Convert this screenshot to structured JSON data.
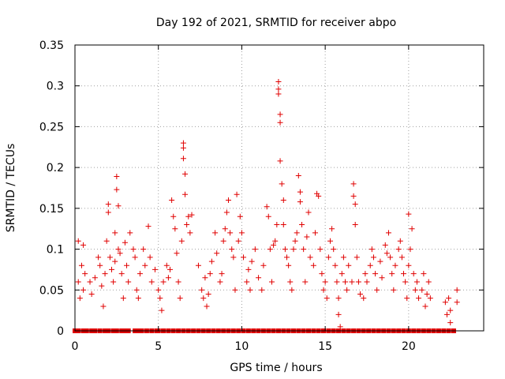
{
  "chart_data": {
    "type": "scatter",
    "title": "Day 192 of 2021, SRMTID for receiver abpo",
    "xlabel": "GPS time / hours",
    "ylabel": "SRMTID / TECUs",
    "xlim": [
      0,
      24.5
    ],
    "ylim": [
      0,
      0.35
    ],
    "grid": true,
    "marker": "+",
    "color": "#e00000",
    "x_ticks": [
      {
        "value": 0,
        "label": "0"
      },
      {
        "value": 5,
        "label": "5"
      },
      {
        "value": 10,
        "label": "10"
      },
      {
        "value": 15,
        "label": "15"
      },
      {
        "value": 20,
        "label": "20"
      }
    ],
    "y_ticks": [
      {
        "value": 0,
        "label": "0"
      },
      {
        "value": 0.05,
        "label": "0.05"
      },
      {
        "value": 0.1,
        "label": "0.1"
      },
      {
        "value": 0.15,
        "label": "0.15"
      },
      {
        "value": 0.2,
        "label": "0.2"
      },
      {
        "value": 0.25,
        "label": "0.25"
      },
      {
        "value": 0.3,
        "label": "0.3"
      },
      {
        "value": 0.35,
        "label": "0.35"
      }
    ],
    "series": [
      {
        "name": "SRMTID",
        "points": [
          [
            0.2,
            0.11
          ],
          [
            0.2,
            0.06
          ],
          [
            0.3,
            0.04
          ],
          [
            0.4,
            0.08
          ],
          [
            0.5,
            0.105
          ],
          [
            0.5,
            0.05
          ],
          [
            0.6,
            0.07
          ],
          [
            0.9,
            0.06
          ],
          [
            1.0,
            0.045
          ],
          [
            1.2,
            0.065
          ],
          [
            1.4,
            0.09
          ],
          [
            1.5,
            0.08
          ],
          [
            1.6,
            0.055
          ],
          [
            1.7,
            0.03
          ],
          [
            1.8,
            0.07
          ],
          [
            1.9,
            0.11
          ],
          [
            2.0,
            0.145
          ],
          [
            2.0,
            0.155
          ],
          [
            2.1,
            0.09
          ],
          [
            2.2,
            0.075
          ],
          [
            2.3,
            0.06
          ],
          [
            2.4,
            0.12
          ],
          [
            2.4,
            0.085
          ],
          [
            2.5,
            0.189
          ],
          [
            2.5,
            0.173
          ],
          [
            2.6,
            0.153
          ],
          [
            2.6,
            0.1
          ],
          [
            2.7,
            0.095
          ],
          [
            2.8,
            0.07
          ],
          [
            2.9,
            0.04
          ],
          [
            3.0,
            0.108
          ],
          [
            3.1,
            0.08
          ],
          [
            3.2,
            0.06
          ],
          [
            3.3,
            0.12
          ],
          [
            3.5,
            0.1
          ],
          [
            3.6,
            0.09
          ],
          [
            3.7,
            0.05
          ],
          [
            3.8,
            0.04
          ],
          [
            3.9,
            0.07
          ],
          [
            4.1,
            0.1
          ],
          [
            4.2,
            0.08
          ],
          [
            4.4,
            0.128
          ],
          [
            4.5,
            0.09
          ],
          [
            4.6,
            0.06
          ],
          [
            4.8,
            0.075
          ],
          [
            5.0,
            0.05
          ],
          [
            5.1,
            0.04
          ],
          [
            5.2,
            0.025
          ],
          [
            5.3,
            0.06
          ],
          [
            5.5,
            0.08
          ],
          [
            5.6,
            0.065
          ],
          [
            5.7,
            0.075
          ],
          [
            5.8,
            0.16
          ],
          [
            5.9,
            0.14
          ],
          [
            6.0,
            0.125
          ],
          [
            6.1,
            0.095
          ],
          [
            6.2,
            0.06
          ],
          [
            6.3,
            0.04
          ],
          [
            6.4,
            0.11
          ],
          [
            6.5,
            0.23
          ],
          [
            6.5,
            0.224
          ],
          [
            6.5,
            0.211
          ],
          [
            6.6,
            0.192
          ],
          [
            6.6,
            0.167
          ],
          [
            6.7,
            0.13
          ],
          [
            6.8,
            0.14
          ],
          [
            6.9,
            0.12
          ],
          [
            7.0,
            0.142
          ],
          [
            7.4,
            0.08
          ],
          [
            7.6,
            0.05
          ],
          [
            7.7,
            0.04
          ],
          [
            7.8,
            0.065
          ],
          [
            7.9,
            0.03
          ],
          [
            8.0,
            0.045
          ],
          [
            8.1,
            0.07
          ],
          [
            8.2,
            0.085
          ],
          [
            8.4,
            0.12
          ],
          [
            8.5,
            0.095
          ],
          [
            8.7,
            0.06
          ],
          [
            8.8,
            0.07
          ],
          [
            8.9,
            0.11
          ],
          [
            9.0,
            0.125
          ],
          [
            9.1,
            0.145
          ],
          [
            9.2,
            0.16
          ],
          [
            9.3,
            0.12
          ],
          [
            9.4,
            0.1
          ],
          [
            9.5,
            0.09
          ],
          [
            9.6,
            0.05
          ],
          [
            9.7,
            0.167
          ],
          [
            9.8,
            0.11
          ],
          [
            9.9,
            0.14
          ],
          [
            10.0,
            0.12
          ],
          [
            10.1,
            0.09
          ],
          [
            10.3,
            0.06
          ],
          [
            10.4,
            0.075
          ],
          [
            10.5,
            0.05
          ],
          [
            10.6,
            0.085
          ],
          [
            10.8,
            0.1
          ],
          [
            11.0,
            0.065
          ],
          [
            11.2,
            0.05
          ],
          [
            11.3,
            0.08
          ],
          [
            11.5,
            0.152
          ],
          [
            11.6,
            0.14
          ],
          [
            11.7,
            0.1
          ],
          [
            11.8,
            0.06
          ],
          [
            11.9,
            0.105
          ],
          [
            12.0,
            0.11
          ],
          [
            12.1,
            0.13
          ],
          [
            12.2,
            0.305
          ],
          [
            12.2,
            0.296
          ],
          [
            12.2,
            0.29
          ],
          [
            12.3,
            0.265
          ],
          [
            12.3,
            0.255
          ],
          [
            12.3,
            0.208
          ],
          [
            12.4,
            0.18
          ],
          [
            12.5,
            0.16
          ],
          [
            12.5,
            0.13
          ],
          [
            12.6,
            0.1
          ],
          [
            12.7,
            0.09
          ],
          [
            12.8,
            0.08
          ],
          [
            12.9,
            0.06
          ],
          [
            13.0,
            0.05
          ],
          [
            13.1,
            0.1
          ],
          [
            13.2,
            0.11
          ],
          [
            13.3,
            0.12
          ],
          [
            13.4,
            0.19
          ],
          [
            13.5,
            0.17
          ],
          [
            13.5,
            0.158
          ],
          [
            13.6,
            0.13
          ],
          [
            13.7,
            0.1
          ],
          [
            13.8,
            0.06
          ],
          [
            13.9,
            0.115
          ],
          [
            14.0,
            0.145
          ],
          [
            14.1,
            0.09
          ],
          [
            14.3,
            0.08
          ],
          [
            14.4,
            0.12
          ],
          [
            14.5,
            0.168
          ],
          [
            14.6,
            0.165
          ],
          [
            14.7,
            0.1
          ],
          [
            14.8,
            0.07
          ],
          [
            14.9,
            0.05
          ],
          [
            15.0,
            0.06
          ],
          [
            15.1,
            0.04
          ],
          [
            15.2,
            0.09
          ],
          [
            15.3,
            0.11
          ],
          [
            15.4,
            0.125
          ],
          [
            15.5,
            0.1
          ],
          [
            15.6,
            0.08
          ],
          [
            15.7,
            0.06
          ],
          [
            15.8,
            0.04
          ],
          [
            15.8,
            0.02
          ],
          [
            15.9,
            0.005
          ],
          [
            16.0,
            0.07
          ],
          [
            16.1,
            0.09
          ],
          [
            16.2,
            0.06
          ],
          [
            16.3,
            0.05
          ],
          [
            16.4,
            0.08
          ],
          [
            16.6,
            0.06
          ],
          [
            16.7,
            0.18
          ],
          [
            16.7,
            0.165
          ],
          [
            16.8,
            0.155
          ],
          [
            16.8,
            0.13
          ],
          [
            16.9,
            0.09
          ],
          [
            17.0,
            0.06
          ],
          [
            17.1,
            0.045
          ],
          [
            17.3,
            0.04
          ],
          [
            17.4,
            0.07
          ],
          [
            17.5,
            0.06
          ],
          [
            17.7,
            0.08
          ],
          [
            17.8,
            0.1
          ],
          [
            17.9,
            0.09
          ],
          [
            18.0,
            0.07
          ],
          [
            18.1,
            0.05
          ],
          [
            18.3,
            0.085
          ],
          [
            18.4,
            0.065
          ],
          [
            18.6,
            0.105
          ],
          [
            18.7,
            0.095
          ],
          [
            18.8,
            0.12
          ],
          [
            18.9,
            0.09
          ],
          [
            19.0,
            0.07
          ],
          [
            19.1,
            0.05
          ],
          [
            19.2,
            0.08
          ],
          [
            19.4,
            0.1
          ],
          [
            19.5,
            0.11
          ],
          [
            19.6,
            0.09
          ],
          [
            19.7,
            0.07
          ],
          [
            19.8,
            0.06
          ],
          [
            19.9,
            0.04
          ],
          [
            20.0,
            0.08
          ],
          [
            20.0,
            0.143
          ],
          [
            20.1,
            0.1
          ],
          [
            20.2,
            0.125
          ],
          [
            20.3,
            0.07
          ],
          [
            20.4,
            0.05
          ],
          [
            20.5,
            0.06
          ],
          [
            20.6,
            0.04
          ],
          [
            20.8,
            0.05
          ],
          [
            20.9,
            0.07
          ],
          [
            21.0,
            0.03
          ],
          [
            21.1,
            0.045
          ],
          [
            21.2,
            0.06
          ],
          [
            21.3,
            0.04
          ],
          [
            22.2,
            0.035
          ],
          [
            22.3,
            0.02
          ],
          [
            22.4,
            0.04
          ],
          [
            22.5,
            0.025
          ],
          [
            22.5,
            0.01
          ],
          [
            22.9,
            0.05
          ],
          [
            22.9,
            0.035
          ]
        ]
      }
    ],
    "zero_value_x": [
      0.0,
      0.2,
      0.5,
      0.7,
      1.0,
      1.2,
      1.5,
      1.8,
      2.0,
      2.3,
      2.5,
      2.8,
      3.0,
      3.2,
      3.6,
      3.8,
      4.0,
      4.3,
      4.6,
      4.9,
      5.0,
      5.3,
      5.6,
      5.9,
      6.2,
      6.5,
      6.8,
      7.1,
      7.4,
      7.7,
      8.0,
      8.3,
      8.6,
      8.9,
      9.2,
      9.5,
      9.8,
      10.1,
      10.4,
      10.7,
      11.0,
      11.3,
      11.6,
      11.9,
      12.2,
      12.5,
      12.8,
      13.1,
      13.4,
      13.7,
      14.0,
      14.3,
      14.6,
      14.9,
      15.2,
      15.5,
      15.8,
      16.1,
      16.4,
      16.7,
      17.0,
      17.3,
      17.6,
      17.9,
      18.2,
      18.5,
      18.8,
      19.1,
      19.4,
      19.7,
      20.0,
      20.3,
      20.6,
      20.9,
      21.2,
      21.5,
      21.8,
      22.1,
      22.4,
      22.7
    ]
  }
}
